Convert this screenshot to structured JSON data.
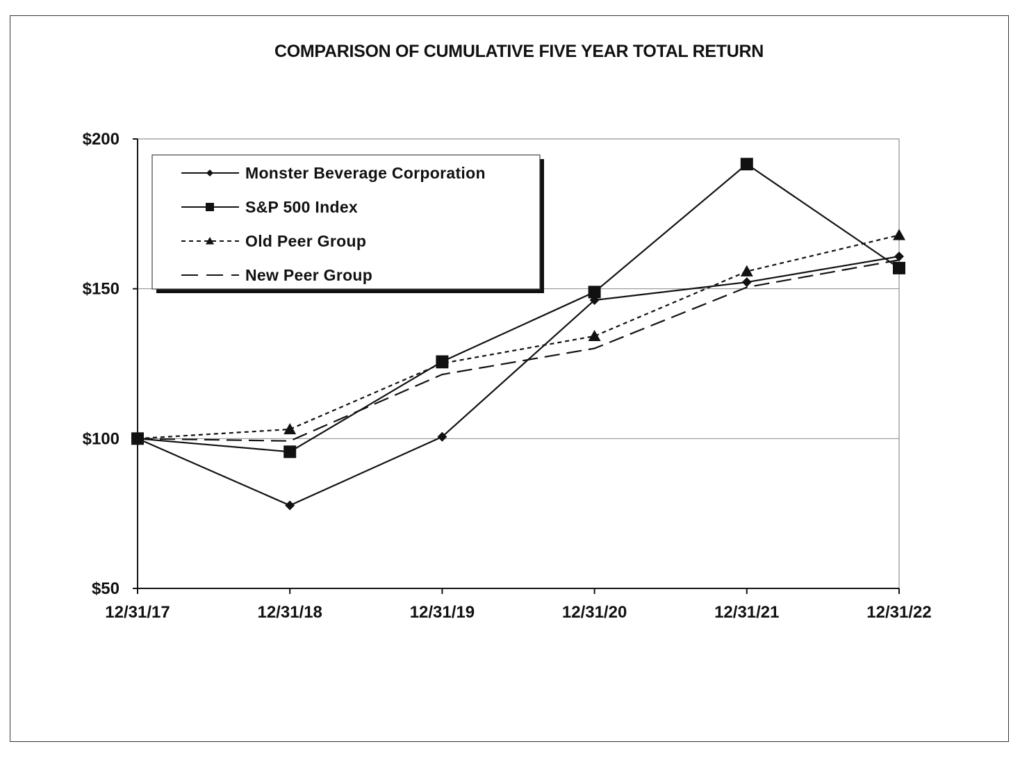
{
  "chart_data": {
    "type": "line",
    "title": "COMPARISON OF CUMULATIVE FIVE YEAR TOTAL RETURN",
    "xlabel": "",
    "ylabel": "",
    "categories": [
      "12/31/17",
      "12/31/18",
      "12/31/19",
      "12/31/20",
      "12/31/21",
      "12/31/22"
    ],
    "y_ticks": [
      50,
      100,
      150,
      200
    ],
    "y_tick_labels": [
      "$50",
      "$100",
      "$150",
      "$200"
    ],
    "ylim": [
      50,
      200
    ],
    "grid": "horizontal",
    "legend_position": "top-left",
    "series": [
      {
        "name": "Monster Beverage Corporation",
        "values": [
          100,
          77.7,
          100.6,
          146.2,
          152.2,
          160.8
        ],
        "marker": "diamond",
        "dash": "solid"
      },
      {
        "name": "S&P 500 Index",
        "values": [
          100,
          95.6,
          125.7,
          148.9,
          191.6,
          156.9
        ],
        "marker": "square",
        "dash": "solid"
      },
      {
        "name": "Old Peer Group",
        "values": [
          100,
          103.1,
          125.1,
          134.2,
          155.8,
          167.9
        ],
        "marker": "triangle",
        "dash": "dotted"
      },
      {
        "name": "New Peer Group",
        "values": [
          100,
          99.2,
          121.4,
          130.1,
          150.5,
          159.6
        ],
        "marker": "none",
        "dash": "dashed"
      }
    ]
  }
}
